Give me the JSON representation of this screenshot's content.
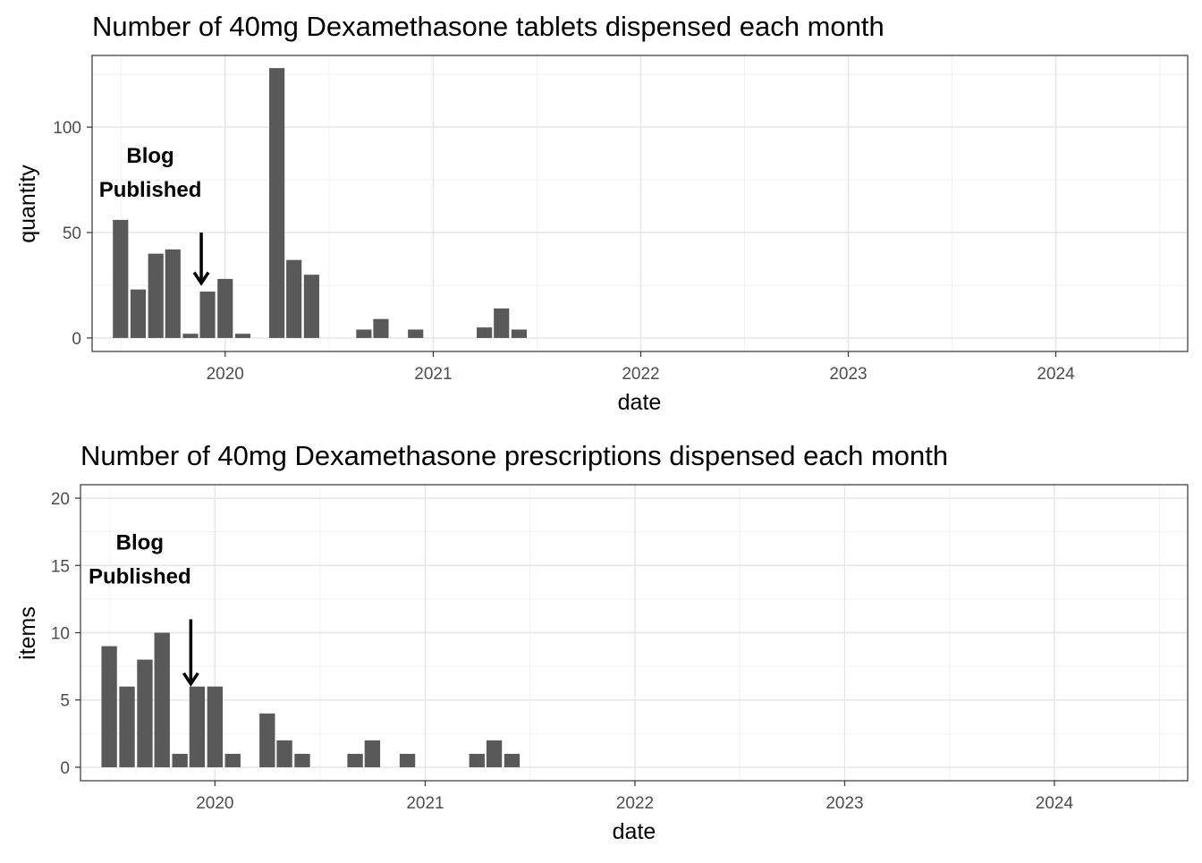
{
  "chart_data": [
    {
      "type": "bar",
      "title": "Number of 40mg Dexamethasone tablets dispensed each month",
      "xlabel": "date",
      "ylabel": "quantity",
      "xlim": [
        "2019-05-12",
        "2024-08-20"
      ],
      "ylim": [
        -6.4,
        134
      ],
      "x_ticks": [
        {
          "date": "2020-01-01",
          "label": "2020"
        },
        {
          "date": "2021-01-01",
          "label": "2021"
        },
        {
          "date": "2022-01-01",
          "label": "2022"
        },
        {
          "date": "2023-01-01",
          "label": "2023"
        },
        {
          "date": "2024-01-01",
          "label": "2024"
        }
      ],
      "y_ticks": [
        0,
        50,
        100
      ],
      "y_minor": [
        25,
        75,
        125
      ],
      "grid": true,
      "bar_color": "#595959",
      "data": [
        {
          "date": "2019-07-01",
          "value": 56
        },
        {
          "date": "2019-08-01",
          "value": 23
        },
        {
          "date": "2019-09-01",
          "value": 40
        },
        {
          "date": "2019-10-01",
          "value": 42
        },
        {
          "date": "2019-11-01",
          "value": 2
        },
        {
          "date": "2019-12-01",
          "value": 22
        },
        {
          "date": "2020-01-01",
          "value": 28
        },
        {
          "date": "2020-02-01",
          "value": 2
        },
        {
          "date": "2020-04-01",
          "value": 128
        },
        {
          "date": "2020-05-01",
          "value": 37
        },
        {
          "date": "2020-06-01",
          "value": 30
        },
        {
          "date": "2020-09-01",
          "value": 4
        },
        {
          "date": "2020-10-01",
          "value": 9
        },
        {
          "date": "2020-12-01",
          "value": 4
        },
        {
          "date": "2021-04-01",
          "value": 5
        },
        {
          "date": "2021-05-01",
          "value": 14
        },
        {
          "date": "2021-06-01",
          "value": 4
        }
      ],
      "annotation": {
        "text_lines": [
          "Blog",
          "Published"
        ],
        "date": "2019-11-20",
        "arrow_from": 50,
        "arrow_to": 26
      }
    },
    {
      "type": "bar",
      "title": "Number of 40mg Dexamethasone prescriptions dispensed each month",
      "xlabel": "date",
      "ylabel": "items",
      "xlim": [
        "2019-05-12",
        "2024-08-20"
      ],
      "ylim": [
        -1,
        21
      ],
      "x_ticks": [
        {
          "date": "2020-01-01",
          "label": "2020"
        },
        {
          "date": "2021-01-01",
          "label": "2021"
        },
        {
          "date": "2022-01-01",
          "label": "2022"
        },
        {
          "date": "2023-01-01",
          "label": "2023"
        },
        {
          "date": "2024-01-01",
          "label": "2024"
        }
      ],
      "y_ticks": [
        0,
        5,
        10,
        15,
        20
      ],
      "y_minor": [
        2.5,
        7.5,
        12.5,
        17.5
      ],
      "grid": true,
      "bar_color": "#595959",
      "data": [
        {
          "date": "2019-07-01",
          "value": 9
        },
        {
          "date": "2019-08-01",
          "value": 6
        },
        {
          "date": "2019-09-01",
          "value": 8
        },
        {
          "date": "2019-10-01",
          "value": 10
        },
        {
          "date": "2019-11-01",
          "value": 1
        },
        {
          "date": "2019-12-01",
          "value": 6
        },
        {
          "date": "2020-01-01",
          "value": 6
        },
        {
          "date": "2020-02-01",
          "value": 1
        },
        {
          "date": "2020-04-01",
          "value": 4
        },
        {
          "date": "2020-05-01",
          "value": 2
        },
        {
          "date": "2020-06-01",
          "value": 1
        },
        {
          "date": "2020-09-01",
          "value": 1
        },
        {
          "date": "2020-10-01",
          "value": 2
        },
        {
          "date": "2020-12-01",
          "value": 1
        },
        {
          "date": "2021-04-01",
          "value": 1
        },
        {
          "date": "2021-05-01",
          "value": 2
        },
        {
          "date": "2021-06-01",
          "value": 1
        }
      ],
      "annotation": {
        "text_lines": [
          "Blog",
          "Published"
        ],
        "date": "2019-11-20",
        "arrow_from": 11,
        "arrow_to": 6.2
      }
    }
  ]
}
